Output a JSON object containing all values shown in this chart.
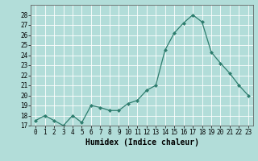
{
  "x": [
    0,
    1,
    2,
    3,
    4,
    5,
    6,
    7,
    8,
    9,
    10,
    11,
    12,
    13,
    14,
    15,
    16,
    17,
    18,
    19,
    20,
    21,
    22,
    23
  ],
  "y": [
    17.5,
    18.0,
    17.5,
    17.0,
    18.0,
    17.3,
    19.0,
    18.8,
    18.5,
    18.5,
    19.2,
    19.5,
    20.5,
    21.0,
    24.5,
    26.2,
    27.2,
    28.0,
    27.3,
    24.3,
    23.2,
    22.2,
    21.0,
    20.0
  ],
  "line_color": "#2e7d6e",
  "marker": "D",
  "marker_size": 2.0,
  "bg_color": "#b2ddd9",
  "grid_color": "#ffffff",
  "xlabel": "Humidex (Indice chaleur)",
  "ylim": [
    17,
    29
  ],
  "xlim": [
    -0.5,
    23.5
  ],
  "yticks": [
    17,
    18,
    19,
    20,
    21,
    22,
    23,
    24,
    25,
    26,
    27,
    28
  ],
  "xticks": [
    0,
    1,
    2,
    3,
    4,
    5,
    6,
    7,
    8,
    9,
    10,
    11,
    12,
    13,
    14,
    15,
    16,
    17,
    18,
    19,
    20,
    21,
    22,
    23
  ],
  "tick_fontsize": 5.5,
  "xlabel_fontsize": 7.0,
  "linewidth": 0.9
}
